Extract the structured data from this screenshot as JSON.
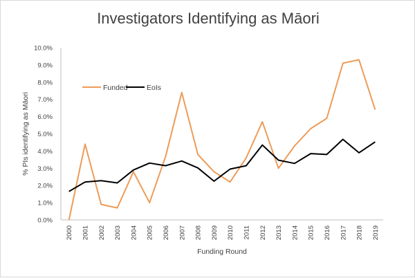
{
  "chart_data": {
    "type": "line",
    "title": "Investigators Identifying as Māori",
    "xlabel": "Funding Round",
    "ylabel": "% PIs identifying as Māori",
    "categories": [
      "2000",
      "2001",
      "2002",
      "2003",
      "2004",
      "2005",
      "2006",
      "2007",
      "2008",
      "2009",
      "2010",
      "2011",
      "2012",
      "2013",
      "2014",
      "2015",
      "2016",
      "2017",
      "2018",
      "2019"
    ],
    "yticks": [
      "0.0%",
      "1.0%",
      "2.0%",
      "3.0%",
      "4.0%",
      "5.0%",
      "6.0%",
      "7.0%",
      "8.0%",
      "9.0%",
      "10.0%"
    ],
    "ylim": [
      0,
      10
    ],
    "grid": false,
    "legend_position": "top-left",
    "series": [
      {
        "name": "Funded",
        "color": "#ED9B57",
        "values": [
          0.0,
          4.4,
          0.9,
          0.7,
          2.8,
          1.0,
          3.7,
          7.4,
          3.8,
          2.8,
          2.2,
          3.6,
          5.7,
          3.0,
          4.3,
          5.3,
          5.9,
          9.1,
          9.3,
          6.4
        ]
      },
      {
        "name": "EoIs",
        "color": "#000000",
        "values": [
          1.65,
          2.2,
          2.28,
          2.15,
          2.9,
          3.3,
          3.15,
          3.42,
          3.02,
          2.25,
          2.95,
          3.15,
          4.35,
          3.47,
          3.28,
          3.85,
          3.8,
          4.68,
          3.9,
          4.53
        ]
      }
    ]
  }
}
